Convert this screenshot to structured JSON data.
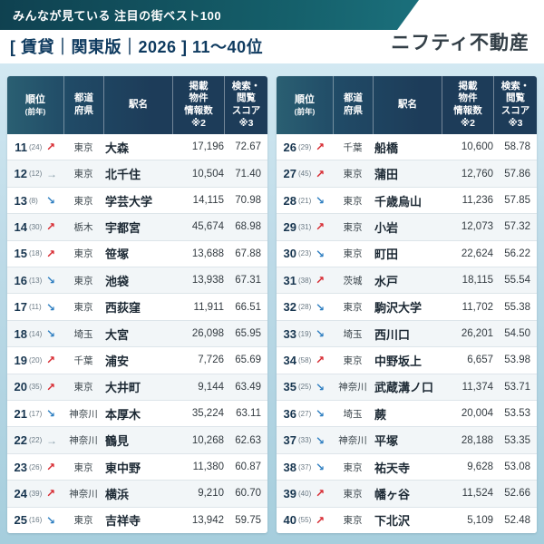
{
  "header": {
    "logo": "ニフティ不動産"
  },
  "headers": {
    "rank_main": "順位",
    "rank_sub": "(前年)",
    "prefecture": "都道\n府県",
    "station": "駅名",
    "listings": "掲載\n物件\n情報数\n※2",
    "score": "検索・\n閲覧\nスコア\n※3"
  },
  "trend": {
    "glyphs": {
      "up": "↗",
      "same": "→",
      "down": "↘"
    },
    "colors": {
      "up": "#d7282f",
      "same": "#8aa0ac",
      "down": "#2f7fc1"
    }
  },
  "colors": {
    "band_teal": "#15606b",
    "navy": "#1d3c59",
    "subtitle_navy": "#0e3a5f",
    "background": "#bedbe8"
  },
  "tables": [
    {
      "range": "0-15"
    },
    {
      "range": "15-30"
    }
  ],
  "chart_data": {
    "type": "table",
    "title": "みんなが見ている 注目の街ベスト100",
    "subtitle": "[ 賃貸｜関東版｜2026 ] 11〜40位",
    "columns": [
      "順位(前年)",
      "都道府県",
      "駅名",
      "掲載物件情報数 ※2",
      "検索・閲覧スコア ※3"
    ],
    "rows": [
      {
        "rank": "11",
        "prev": "(24)",
        "trend": "up",
        "pref": "東京",
        "station": "大森",
        "listings": "17,196",
        "score": "72.67"
      },
      {
        "rank": "12",
        "prev": "(12)",
        "trend": "same",
        "pref": "東京",
        "station": "北千住",
        "listings": "10,504",
        "score": "71.40"
      },
      {
        "rank": "13",
        "prev": "(8)",
        "trend": "down",
        "pref": "東京",
        "station": "学芸大学",
        "listings": "14,115",
        "score": "70.98"
      },
      {
        "rank": "14",
        "prev": "(30)",
        "trend": "up",
        "pref": "栃木",
        "station": "宇都宮",
        "listings": "45,674",
        "score": "68.98"
      },
      {
        "rank": "15",
        "prev": "(18)",
        "trend": "up",
        "pref": "東京",
        "station": "笹塚",
        "listings": "13,688",
        "score": "67.88"
      },
      {
        "rank": "16",
        "prev": "(13)",
        "trend": "down",
        "pref": "東京",
        "station": "池袋",
        "listings": "13,938",
        "score": "67.31"
      },
      {
        "rank": "17",
        "prev": "(11)",
        "trend": "down",
        "pref": "東京",
        "station": "西荻窪",
        "listings": "11,911",
        "score": "66.51"
      },
      {
        "rank": "18",
        "prev": "(14)",
        "trend": "down",
        "pref": "埼玉",
        "station": "大宮",
        "listings": "26,098",
        "score": "65.95"
      },
      {
        "rank": "19",
        "prev": "(20)",
        "trend": "up",
        "pref": "千葉",
        "station": "浦安",
        "listings": "7,726",
        "score": "65.69"
      },
      {
        "rank": "20",
        "prev": "(35)",
        "trend": "up",
        "pref": "東京",
        "station": "大井町",
        "listings": "9,144",
        "score": "63.49"
      },
      {
        "rank": "21",
        "prev": "(17)",
        "trend": "down",
        "pref": "神奈川",
        "station": "本厚木",
        "listings": "35,224",
        "score": "63.11"
      },
      {
        "rank": "22",
        "prev": "(22)",
        "trend": "same",
        "pref": "神奈川",
        "station": "鶴見",
        "listings": "10,268",
        "score": "62.63"
      },
      {
        "rank": "23",
        "prev": "(26)",
        "trend": "up",
        "pref": "東京",
        "station": "東中野",
        "listings": "11,380",
        "score": "60.87"
      },
      {
        "rank": "24",
        "prev": "(39)",
        "trend": "up",
        "pref": "神奈川",
        "station": "横浜",
        "listings": "9,210",
        "score": "60.70"
      },
      {
        "rank": "25",
        "prev": "(16)",
        "trend": "down",
        "pref": "東京",
        "station": "吉祥寺",
        "listings": "13,942",
        "score": "59.75"
      },
      {
        "rank": "26",
        "prev": "(29)",
        "trend": "up",
        "pref": "千葉",
        "station": "船橋",
        "listings": "10,600",
        "score": "58.78"
      },
      {
        "rank": "27",
        "prev": "(45)",
        "trend": "up",
        "pref": "東京",
        "station": "蒲田",
        "listings": "12,760",
        "score": "57.86"
      },
      {
        "rank": "28",
        "prev": "(21)",
        "trend": "down",
        "pref": "東京",
        "station": "千歳烏山",
        "listings": "11,236",
        "score": "57.85"
      },
      {
        "rank": "29",
        "prev": "(31)",
        "trend": "up",
        "pref": "東京",
        "station": "小岩",
        "listings": "12,073",
        "score": "57.32"
      },
      {
        "rank": "30",
        "prev": "(23)",
        "trend": "down",
        "pref": "東京",
        "station": "町田",
        "listings": "22,624",
        "score": "56.22"
      },
      {
        "rank": "31",
        "prev": "(38)",
        "trend": "up",
        "pref": "茨城",
        "station": "水戸",
        "listings": "18,115",
        "score": "55.54"
      },
      {
        "rank": "32",
        "prev": "(28)",
        "trend": "down",
        "pref": "東京",
        "station": "駒沢大学",
        "listings": "11,702",
        "score": "55.38"
      },
      {
        "rank": "33",
        "prev": "(19)",
        "trend": "down",
        "pref": "埼玉",
        "station": "西川口",
        "listings": "26,201",
        "score": "54.50"
      },
      {
        "rank": "34",
        "prev": "(58)",
        "trend": "up",
        "pref": "東京",
        "station": "中野坂上",
        "listings": "6,657",
        "score": "53.98"
      },
      {
        "rank": "35",
        "prev": "(25)",
        "trend": "down",
        "pref": "神奈川",
        "station": "武蔵溝ノ口",
        "listings": "11,374",
        "score": "53.71"
      },
      {
        "rank": "36",
        "prev": "(27)",
        "trend": "down",
        "pref": "埼玉",
        "station": "蕨",
        "listings": "20,004",
        "score": "53.53"
      },
      {
        "rank": "37",
        "prev": "(33)",
        "trend": "down",
        "pref": "神奈川",
        "station": "平塚",
        "listings": "28,188",
        "score": "53.35"
      },
      {
        "rank": "38",
        "prev": "(37)",
        "trend": "down",
        "pref": "東京",
        "station": "祐天寺",
        "listings": "9,628",
        "score": "53.08"
      },
      {
        "rank": "39",
        "prev": "(40)",
        "trend": "up",
        "pref": "東京",
        "station": "幡ヶ谷",
        "listings": "11,524",
        "score": "52.66"
      },
      {
        "rank": "40",
        "prev": "(55)",
        "trend": "up",
        "pref": "東京",
        "station": "下北沢",
        "listings": "5,109",
        "score": "52.48"
      }
    ]
  }
}
